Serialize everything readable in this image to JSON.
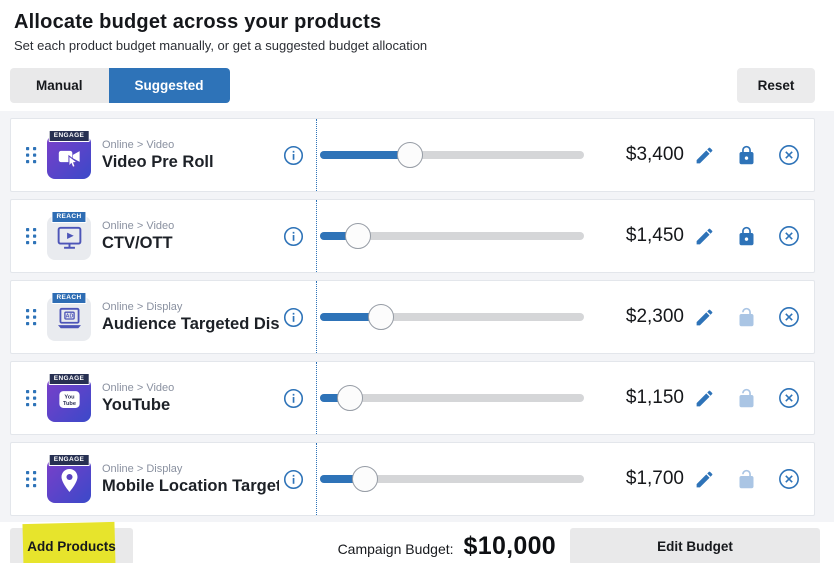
{
  "header": {
    "title": "Allocate budget across your products",
    "subtitle": "Set each product budget manually, or get a suggested budget allocation",
    "tabs": [
      {
        "label": "Manual",
        "active": false
      },
      {
        "label": "Suggested",
        "active": true
      }
    ],
    "reset_label": "Reset"
  },
  "products": [
    {
      "badge": "ENGAGE",
      "icon": "video-preroll-icon",
      "category": "Online > Video",
      "name": "Video Pre Roll",
      "value": "$3,400",
      "fill_percent": 34,
      "locked": true
    },
    {
      "badge": "REACH",
      "icon": "ctv-ott-icon",
      "category": "Online > Video",
      "name": "CTV/OTT",
      "value": "$1,450",
      "fill_percent": 14.5,
      "locked": true
    },
    {
      "badge": "REACH",
      "icon": "audience-display-icon",
      "category": "Online > Display",
      "name": "Audience Targeted Dis...",
      "value": "$2,300",
      "fill_percent": 23,
      "locked": false
    },
    {
      "badge": "ENGAGE",
      "icon": "youtube-icon",
      "category": "Online > Video",
      "name": "YouTube",
      "value": "$1,150",
      "fill_percent": 11.5,
      "locked": false
    },
    {
      "badge": "ENGAGE",
      "icon": "mobile-location-icon",
      "category": "Online > Display",
      "name": "Mobile Location Target...",
      "value": "$1,700",
      "fill_percent": 17,
      "locked": false
    }
  ],
  "footer": {
    "add_products_label": "Add Products",
    "campaign_budget_label": "Campaign Budget:",
    "campaign_budget_value": "$10,000",
    "edit_budget_label": "Edit Budget"
  },
  "colors": {
    "accent_blue": "#2e73b8",
    "locked_lock": "#2e73b8",
    "unlocked_lock": "#aac5e4",
    "engage_badge": "#273052",
    "reach_badge": "#2e6db4",
    "highlight_yellow": "#e7e42c",
    "slider_track": "#d5d6d8",
    "tile_gradient_start": "#7a3fc9",
    "tile_gradient_end": "#3b49c9"
  }
}
